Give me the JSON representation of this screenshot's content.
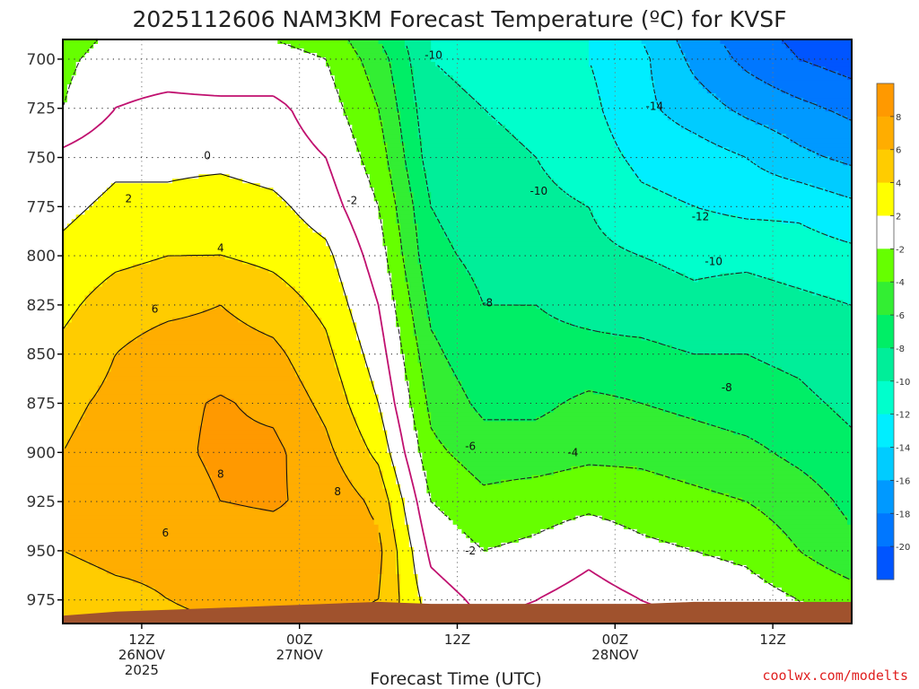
{
  "chart_data": {
    "type": "time-height contour",
    "title": "2025112606 NAM3KM Forecast Temperature (ºC) for KVSF",
    "xlabel": "Forecast Time (UTC)",
    "credit": "coolwx.com/modelts",
    "y_axis": {
      "unit": "hPa",
      "ticks": [
        700,
        725,
        750,
        775,
        800,
        825,
        850,
        875,
        900,
        925,
        950,
        975
      ],
      "range": [
        987,
        690
      ]
    },
    "x_axis": {
      "unit": "forecast hour from 2025112606",
      "range": [
        0,
        60
      ],
      "ticks": [
        {
          "hour": 6,
          "lines": [
            "12Z",
            "26NOV",
            "2025"
          ]
        },
        {
          "hour": 18,
          "lines": [
            "00Z",
            "27NOV"
          ]
        },
        {
          "hour": 30,
          "lines": [
            "12Z"
          ]
        },
        {
          "hour": 42,
          "lines": [
            "00Z",
            "28NOV"
          ]
        },
        {
          "hour": 54,
          "lines": [
            "12Z"
          ]
        }
      ]
    },
    "colorbar": {
      "labels": [
        "8",
        "6",
        "4",
        "2",
        "-2",
        "-4",
        "-6",
        "-8",
        "-10",
        "-12",
        "-14",
        "-16",
        "-18",
        "-20"
      ],
      "bins": [
        {
          "range": [
            8,
            10
          ],
          "color": "#ff9900"
        },
        {
          "range": [
            6,
            8
          ],
          "color": "#ffad00"
        },
        {
          "range": [
            4,
            6
          ],
          "color": "#ffcc00"
        },
        {
          "range": [
            2,
            4
          ],
          "color": "#ffff00"
        },
        {
          "range": [
            -2,
            2
          ],
          "color": "#ffffff"
        },
        {
          "range": [
            -4,
            -2
          ],
          "color": "#66ff00"
        },
        {
          "range": [
            -6,
            -4
          ],
          "color": "#33ee33"
        },
        {
          "range": [
            -8,
            -6
          ],
          "color": "#00ee66"
        },
        {
          "range": [
            -10,
            -8
          ],
          "color": "#00ee99"
        },
        {
          "range": [
            -12,
            -10
          ],
          "color": "#00ffcc"
        },
        {
          "range": [
            -14,
            -12
          ],
          "color": "#00eeff"
        },
        {
          "range": [
            -16,
            -14
          ],
          "color": "#00ccff"
        },
        {
          "range": [
            -18,
            -16
          ],
          "color": "#0099ff"
        },
        {
          "range": [
            -20,
            -18
          ],
          "color": "#0077ff"
        },
        {
          "range": [
            -22,
            -20
          ],
          "color": "#0055ff"
        }
      ]
    },
    "terrain_color": "#a0522d",
    "zero_line_color": "#c0106f",
    "contour_labels": [
      {
        "text": "0",
        "hour": 11.0,
        "p": 749
      },
      {
        "text": "2",
        "hour": 5.0,
        "p": 771
      },
      {
        "text": "4",
        "hour": 12.0,
        "p": 796
      },
      {
        "text": "6",
        "hour": 7.0,
        "p": 827
      },
      {
        "text": "8",
        "hour": 12.0,
        "p": 911
      },
      {
        "text": "8",
        "hour": 20.9,
        "p": 920
      },
      {
        "text": "6",
        "hour": 7.8,
        "p": 941
      },
      {
        "text": "-2",
        "hour": 22.0,
        "p": 772
      },
      {
        "text": "-10",
        "hour": 28.2,
        "p": 698
      },
      {
        "text": "-14",
        "hour": 45.0,
        "p": 724
      },
      {
        "text": "-10",
        "hour": 36.2,
        "p": 767
      },
      {
        "text": "-12",
        "hour": 48.5,
        "p": 780
      },
      {
        "text": "-10",
        "hour": 49.5,
        "p": 803
      },
      {
        "text": "-8",
        "hour": 32.3,
        "p": 824
      },
      {
        "text": "-8",
        "hour": 50.5,
        "p": 867
      },
      {
        "text": "-6",
        "hour": 31.0,
        "p": 897
      },
      {
        "text": "-4",
        "hour": 38.8,
        "p": 900
      },
      {
        "text": "-2",
        "hour": 31.0,
        "p": 950
      }
    ],
    "fields": {
      "hours": [
        0,
        4,
        8,
        12,
        16,
        20,
        24,
        28,
        32,
        36,
        40,
        44,
        48,
        52,
        56,
        60
      ],
      "levels_hPa": [
        690,
        700,
        725,
        750,
        775,
        800,
        825,
        850,
        875,
        900,
        925,
        950,
        975,
        987
      ],
      "temperature_C": [
        [
          -3,
          -1.5,
          -1.5,
          -1.5,
          -2,
          -2.5,
          -6,
          -10,
          -11,
          -11,
          -12,
          -14,
          -17,
          -19,
          -20.5,
          -21.5
        ],
        [
          -2.5,
          -1,
          -1,
          -1.5,
          -1.5,
          -2,
          -5,
          -10,
          -10.5,
          -11,
          -12,
          -13.5,
          -16.5,
          -18.5,
          -20,
          -21
        ],
        [
          -2,
          0,
          0.5,
          0.5,
          0.5,
          -1,
          -4,
          -9.5,
          -10,
          -10.5,
          -11.5,
          -13.5,
          -15,
          -16.5,
          -17.5,
          -18.5
        ],
        [
          0.5,
          1.5,
          1.5,
          1.5,
          1,
          0,
          -3,
          -9,
          -9.5,
          -10,
          -11,
          -12.5,
          -13,
          -14,
          -15.5,
          -16.5
        ],
        [
          1.5,
          2.5,
          2.5,
          3,
          2.5,
          1,
          -2,
          -8,
          -9,
          -9.5,
          -10,
          -11.5,
          -12,
          -12.5,
          -12.5,
          -13.5
        ],
        [
          2.5,
          3.5,
          4,
          4,
          3.5,
          2.5,
          -1,
          -7.5,
          -8.5,
          -9,
          -9.5,
          -10,
          -10.5,
          -10.5,
          -11,
          -11.5
        ],
        [
          3.5,
          5,
          5.5,
          6,
          5,
          3.5,
          0,
          -6.5,
          -8,
          -8,
          -8.5,
          -9,
          -9.5,
          -9,
          -9.5,
          -10
        ],
        [
          4.5,
          6,
          7,
          7,
          6.5,
          4.5,
          1,
          -5.5,
          -7.5,
          -7.5,
          -7.5,
          -7.5,
          -8,
          -8,
          -8.5,
          -9.5
        ],
        [
          5.5,
          6.5,
          7.5,
          8.2,
          7.5,
          5.5,
          2,
          -4.5,
          -6.5,
          -6.5,
          -5.5,
          -6,
          -6.5,
          -7,
          -7.5,
          -8.5
        ],
        [
          6,
          7,
          7.5,
          8.4,
          8.5,
          6.5,
          3.5,
          -3.5,
          -5,
          -5,
          -4.5,
          -4.5,
          -5,
          -5.5,
          -6.5,
          -7.5
        ],
        [
          6,
          6.5,
          7,
          8,
          8.2,
          7.5,
          5.5,
          -2,
          -3.5,
          -3,
          -2.5,
          -3,
          -3.5,
          -4,
          -5,
          -6.5
        ],
        [
          6,
          6.5,
          6.5,
          7,
          7.2,
          7,
          6.5,
          -0.5,
          -2,
          -1.5,
          -0.5,
          -1.5,
          -2,
          -2.5,
          -4,
          -5.5
        ],
        [
          5,
          5.5,
          6,
          6.5,
          6.5,
          6.5,
          6,
          1,
          -0.5,
          0,
          0.8,
          0,
          -0.5,
          -1,
          -2,
          -3
        ],
        [
          4.5,
          5,
          5.5,
          6,
          6,
          6,
          5.5,
          1.5,
          0,
          0.5,
          1.5,
          0.5,
          0,
          -0.5,
          -1.5,
          -2.5
        ]
      ]
    }
  }
}
